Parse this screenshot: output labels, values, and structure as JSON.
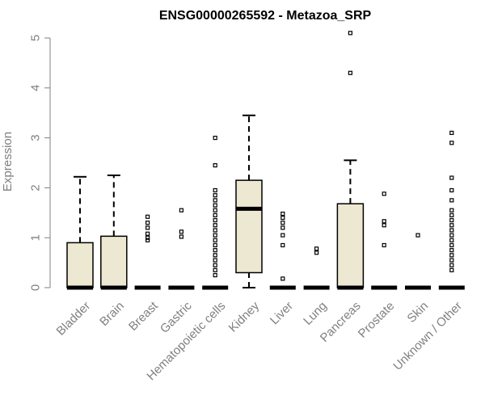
{
  "chart_data": {
    "type": "boxplot",
    "title": "ENSG00000265592 - Metazoa_SRP",
    "xlabel": "",
    "ylabel": "Expression",
    "ylim": [
      0,
      5.2
    ],
    "yticks": [
      0,
      1,
      2,
      3,
      4,
      5
    ],
    "box_fill": "#ede8d1",
    "categories": [
      "Bladder",
      "Brain",
      "Breast",
      "Gastric",
      "Hematopoietic cells",
      "Kidney",
      "Liver",
      "Lung",
      "Pancreas",
      "Prostate",
      "Skin",
      "Unknown / Other"
    ],
    "boxes": [
      {
        "label": "Bladder",
        "min": 0,
        "q1": 0,
        "median": 0,
        "q3": 0.9,
        "max": 2.22,
        "outliers": []
      },
      {
        "label": "Brain",
        "min": 0,
        "q1": 0,
        "median": 0,
        "q3": 1.03,
        "max": 2.25,
        "outliers": []
      },
      {
        "label": "Breast",
        "min": 0,
        "q1": 0,
        "median": 0,
        "q3": 0,
        "max": 0,
        "outliers": [
          0.95,
          1.0,
          1.08,
          1.2,
          1.3,
          1.42
        ]
      },
      {
        "label": "Gastric",
        "min": 0,
        "q1": 0,
        "median": 0,
        "q3": 0,
        "max": 0,
        "outliers": [
          1.02,
          1.12,
          1.55
        ]
      },
      {
        "label": "Hematopoietic cells",
        "min": 0,
        "q1": 0,
        "median": 0,
        "q3": 0,
        "max": 0,
        "outliers": [
          0.25,
          0.35,
          0.45,
          0.55,
          0.65,
          0.75,
          0.85,
          0.95,
          1.05,
          1.15,
          1.25,
          1.35,
          1.45,
          1.55,
          1.65,
          1.75,
          1.85,
          1.95,
          2.45,
          3.0
        ]
      },
      {
        "label": "Kidney",
        "min": 0,
        "q1": 0.3,
        "median": 1.58,
        "q3": 2.15,
        "max": 3.45,
        "outliers": []
      },
      {
        "label": "Liver",
        "min": 0,
        "q1": 0,
        "median": 0,
        "q3": 0,
        "max": 0,
        "outliers": [
          0.18,
          0.85,
          1.05,
          1.2,
          1.3,
          1.4,
          1.48
        ]
      },
      {
        "label": "Lung",
        "min": 0,
        "q1": 0,
        "median": 0,
        "q3": 0,
        "max": 0,
        "outliers": [
          0.7,
          0.78
        ]
      },
      {
        "label": "Pancreas",
        "min": 0,
        "q1": 0,
        "median": 0,
        "q3": 1.68,
        "max": 2.55,
        "outliers": [
          4.3,
          5.1
        ]
      },
      {
        "label": "Prostate",
        "min": 0,
        "q1": 0,
        "median": 0,
        "q3": 0,
        "max": 0,
        "outliers": [
          0.85,
          1.25,
          1.33,
          1.88
        ]
      },
      {
        "label": "Skin",
        "min": 0,
        "q1": 0,
        "median": 0,
        "q3": 0,
        "max": 0,
        "outliers": [
          1.05
        ]
      },
      {
        "label": "Unknown / Other",
        "min": 0,
        "q1": 0,
        "median": 0,
        "q3": 0,
        "max": 0,
        "outliers": [
          0.35,
          0.45,
          0.55,
          0.65,
          0.75,
          0.85,
          0.95,
          1.05,
          1.15,
          1.25,
          1.35,
          1.45,
          1.55,
          1.75,
          1.95,
          2.2,
          2.9,
          3.1
        ]
      }
    ]
  }
}
